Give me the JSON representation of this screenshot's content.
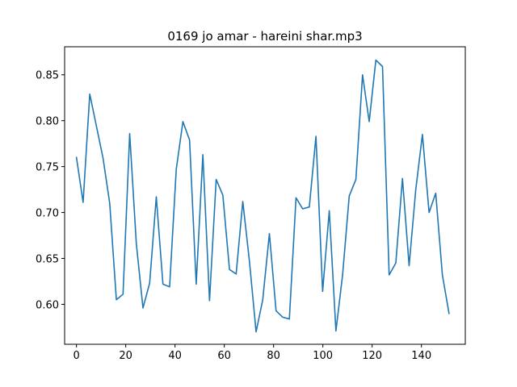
{
  "chart_data": {
    "type": "line",
    "title": "0169 jo amar - hareini shar.mp3",
    "xlabel": "",
    "ylabel": "",
    "xlim": [
      -4.8,
      157.8
    ],
    "ylim": [
      0.5565,
      0.8805
    ],
    "xticks": [
      0,
      20,
      40,
      60,
      80,
      100,
      120,
      140
    ],
    "yticks": [
      0.6,
      0.65,
      0.7,
      0.75,
      0.8,
      0.85
    ],
    "xtick_labels": [
      "0",
      "20",
      "40",
      "60",
      "80",
      "100",
      "120",
      "140"
    ],
    "ytick_labels": [
      "0.60",
      "0.65",
      "0.70",
      "0.75",
      "0.80",
      "0.85"
    ],
    "grid": false,
    "series": [
      {
        "color": "#1f77b4",
        "x": [
          0,
          2.7,
          5.4,
          8.1,
          10.8,
          13.5,
          16.2,
          18.9,
          21.6,
          24.3,
          27,
          29.7,
          32.4,
          35.1,
          37.8,
          40.5,
          43.2,
          45.9,
          48.6,
          51.3,
          54,
          56.7,
          59.4,
          62.1,
          64.8,
          67.5,
          70.2,
          72.9,
          75.6,
          78.3,
          81,
          83.7,
          86.4,
          89.1,
          91.8,
          94.5,
          97.2,
          99.9,
          102.6,
          105.3,
          108,
          110.7,
          113.4,
          116.1,
          118.8,
          121.5,
          124.2,
          126.9,
          129.6,
          132.3,
          135,
          137.7,
          140.4,
          143.1,
          145.8,
          148.5,
          151.2
        ],
        "y": [
          0.76,
          0.711,
          0.829,
          0.794,
          0.759,
          0.71,
          0.605,
          0.611,
          0.786,
          0.666,
          0.596,
          0.623,
          0.717,
          0.622,
          0.619,
          0.747,
          0.799,
          0.779,
          0.622,
          0.763,
          0.604,
          0.736,
          0.719,
          0.638,
          0.633,
          0.712,
          0.647,
          0.57,
          0.605,
          0.677,
          0.593,
          0.586,
          0.584,
          0.716,
          0.704,
          0.706,
          0.783,
          0.614,
          0.702,
          0.571,
          0.632,
          0.718,
          0.736,
          0.85,
          0.799,
          0.866,
          0.859,
          0.632,
          0.645,
          0.737,
          0.642,
          0.725,
          0.785,
          0.7,
          0.721,
          0.632,
          0.59
        ]
      }
    ]
  }
}
